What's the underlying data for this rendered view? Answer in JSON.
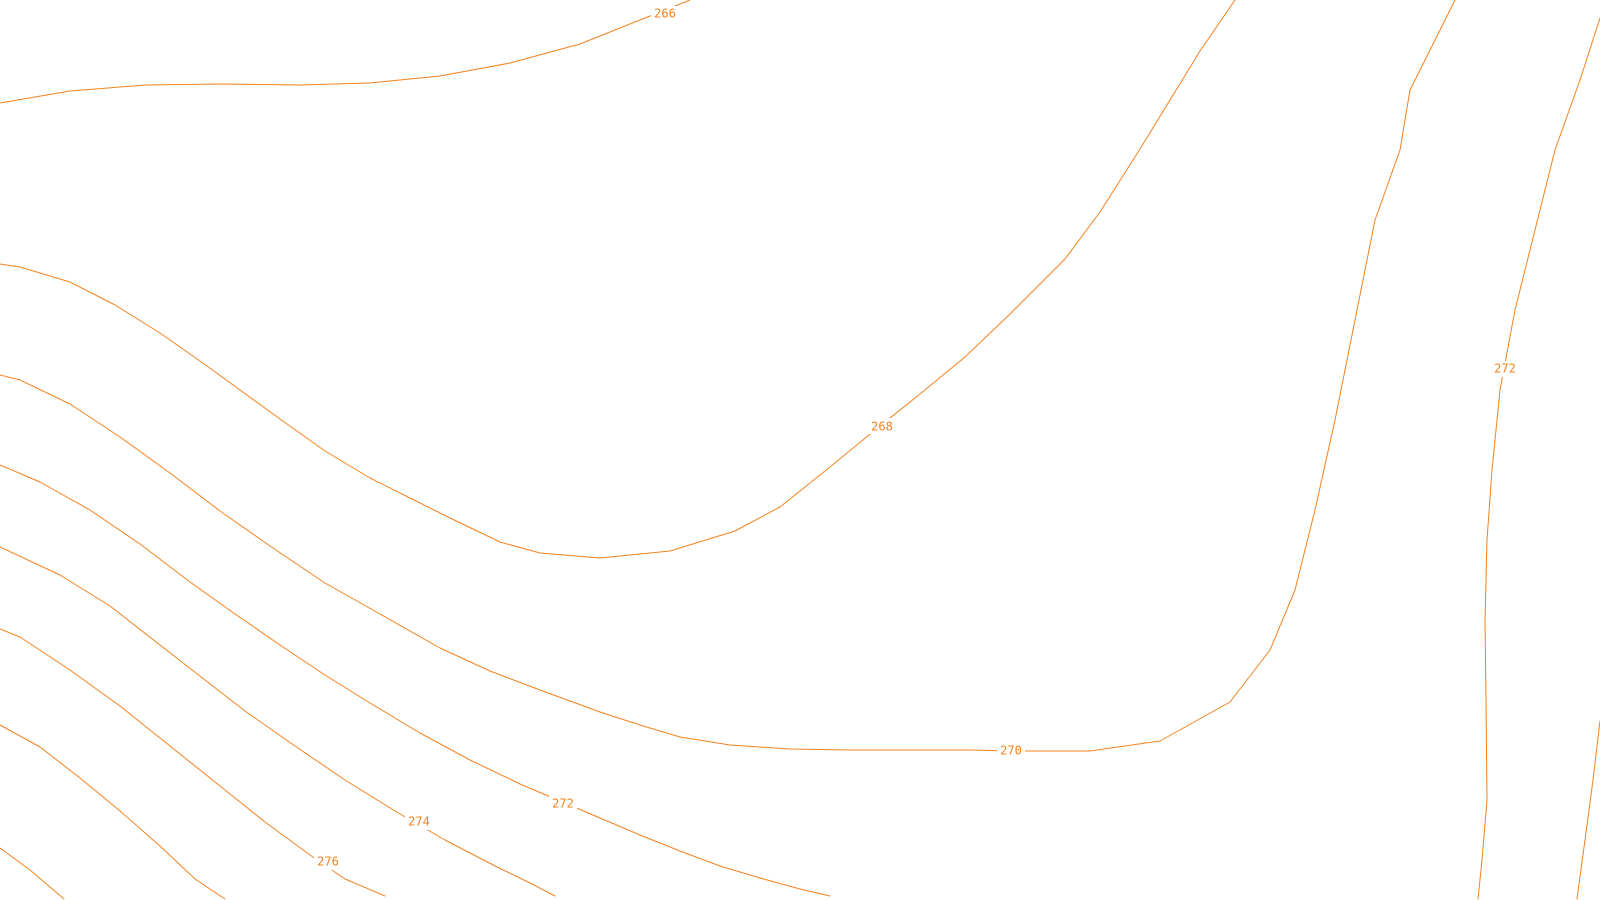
{
  "colors": {
    "contour": "#f5821f",
    "background": "#ffffff"
  },
  "map": {
    "type": "contour-map",
    "units": "elevation",
    "contours": [
      {
        "name": "contour-266",
        "label": "266"
      },
      {
        "name": "contour-268",
        "label": "268"
      },
      {
        "name": "contour-270-west",
        "label": "270"
      },
      {
        "name": "contour-272-west",
        "label": "272"
      },
      {
        "name": "contour-274",
        "label": "274"
      },
      {
        "name": "contour-276",
        "label": "276"
      },
      {
        "name": "contour-278",
        "label": ""
      },
      {
        "name": "contour-270-east",
        "label": ""
      },
      {
        "name": "contour-272-east",
        "label": "272"
      },
      {
        "name": "contour-274-east",
        "label": ""
      }
    ]
  }
}
